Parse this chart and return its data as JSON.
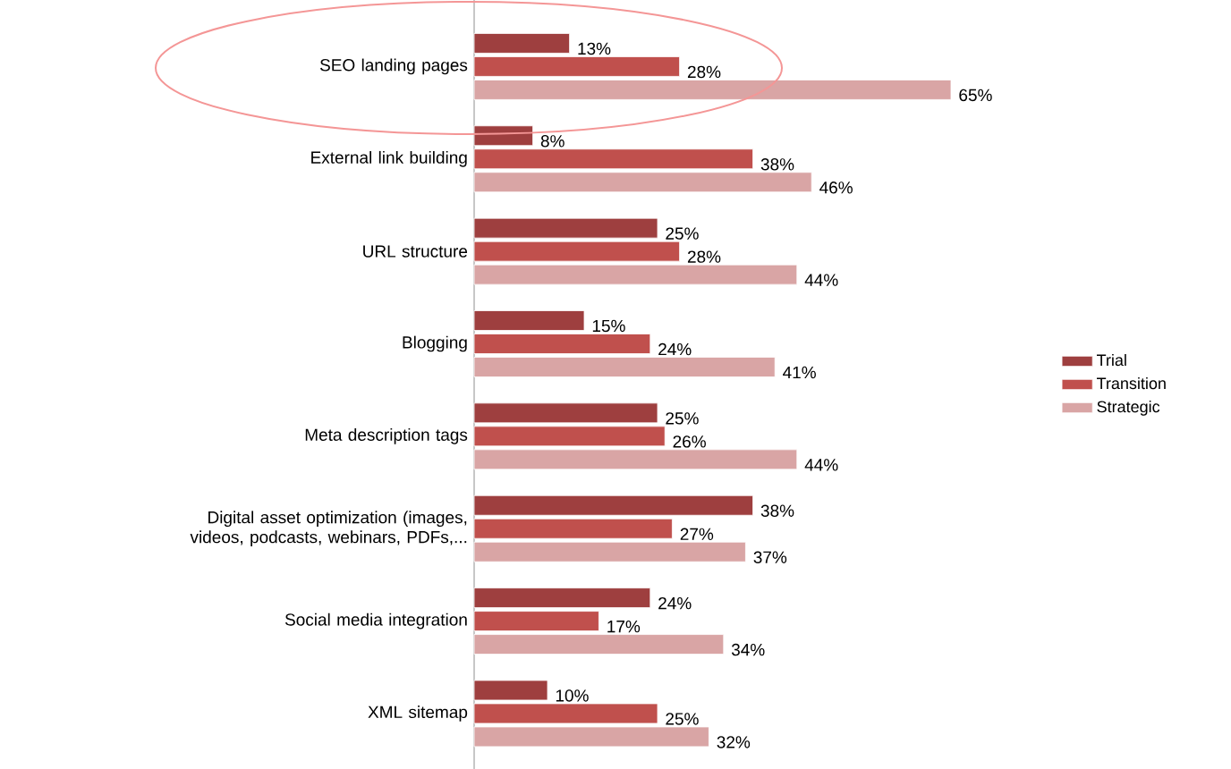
{
  "chart_data": {
    "type": "bar",
    "orientation": "horizontal",
    "categories": [
      "SEO landing pages",
      "External link building",
      "URL structure",
      "Blogging",
      "Meta description tags",
      "Digital asset optimization (images, videos, podcasts, webinars, PDFs,...",
      "Social media integration",
      "XML sitemap"
    ],
    "series": [
      {
        "name": "Trial",
        "color": "#9e3f3f",
        "values": [
          13,
          8,
          25,
          15,
          25,
          38,
          24,
          10
        ],
        "value_labels": [
          "13%",
          "8%",
          "25%",
          "15%",
          "25%",
          "38%",
          "24%",
          "10%"
        ]
      },
      {
        "name": "Transition",
        "color": "#c0504d",
        "values": [
          28,
          38,
          28,
          24,
          26,
          27,
          17,
          25
        ],
        "value_labels": [
          "28%",
          "38%",
          "28%",
          "24%",
          "26%",
          "27%",
          "17%",
          "25%"
        ]
      },
      {
        "name": "Strategic",
        "color": "#d9a5a5",
        "values": [
          65,
          46,
          44,
          41,
          44,
          37,
          34,
          32
        ],
        "value_labels": [
          "65%",
          "46%",
          "44%",
          "41%",
          "44%",
          "37%",
          "34%",
          "32%"
        ]
      }
    ],
    "tick_labels": "y",
    "legend": "right",
    "grid": false
  }
}
